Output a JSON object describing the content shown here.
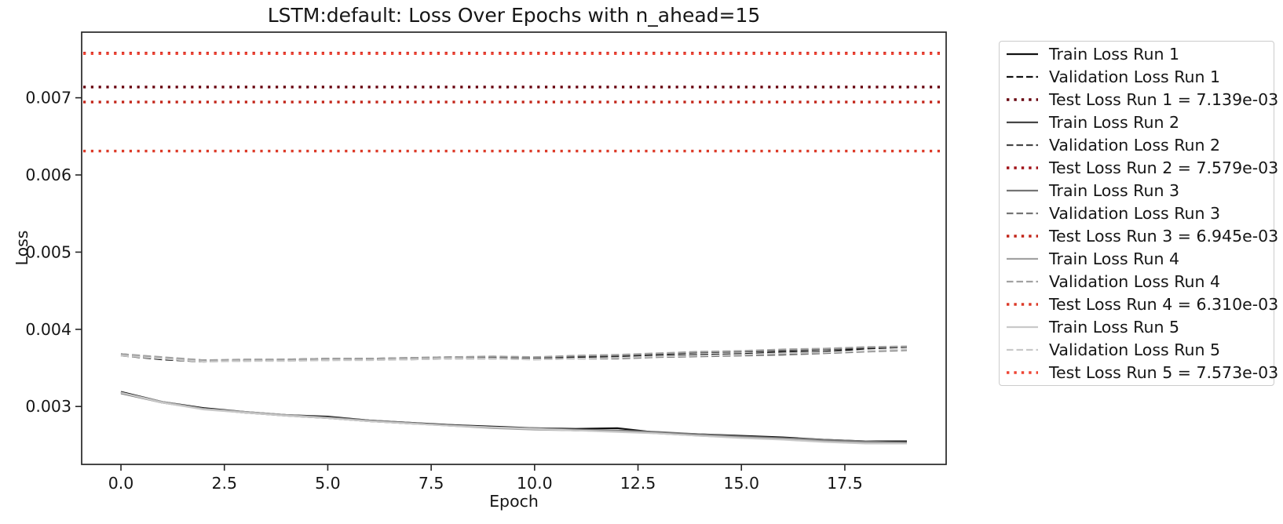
{
  "chart_data": {
    "type": "line",
    "title": "LSTM:default: Loss Over Epochs with n_ahead=15",
    "xlabel": "Epoch",
    "ylabel": "Loss",
    "xlim": [
      -0.95,
      19.95
    ],
    "ylim": [
      0.00225,
      0.00785
    ],
    "grid": false,
    "legend_position": "outside-right",
    "x_tick_values": [
      0.0,
      2.5,
      5.0,
      7.5,
      10.0,
      12.5,
      15.0,
      17.5
    ],
    "x_tick_labels": [
      "0.0",
      "2.5",
      "5.0",
      "7.5",
      "10.0",
      "12.5",
      "15.0",
      "17.5"
    ],
    "y_tick_values": [
      0.003,
      0.004,
      0.005,
      0.006,
      0.007
    ],
    "y_tick_labels": [
      "0.003",
      "0.004",
      "0.005",
      "0.006",
      "0.007"
    ],
    "x": [
      0,
      1,
      2,
      3,
      4,
      5,
      6,
      7,
      8,
      9,
      10,
      11,
      12,
      13,
      14,
      15,
      16,
      17,
      18,
      19
    ],
    "series": [
      {
        "name": "Train Loss Run 1",
        "style": "solid",
        "color": "#111111",
        "values": [
          0.00319,
          0.00306,
          0.00298,
          0.00293,
          0.00289,
          0.00287,
          0.00282,
          0.00279,
          0.00276,
          0.00274,
          0.00272,
          0.00271,
          0.00272,
          0.00266,
          0.00264,
          0.00262,
          0.0026,
          0.00257,
          0.00255,
          0.00255
        ]
      },
      {
        "name": "Validation Loss Run 1",
        "style": "dashed",
        "color": "#111111",
        "values": [
          0.00366,
          0.00361,
          0.00358,
          0.0036,
          0.0036,
          0.00361,
          0.00361,
          0.00362,
          0.00363,
          0.00363,
          0.00362,
          0.00364,
          0.00364,
          0.00366,
          0.00367,
          0.00368,
          0.0037,
          0.00371,
          0.00375,
          0.00377
        ]
      },
      {
        "name": "Test Loss Run 1 = 7.139e-03",
        "style": "dotted",
        "color": "#67000d",
        "value": 0.007139
      },
      {
        "name": "Train Loss Run 2",
        "style": "solid",
        "color": "#464646",
        "values": [
          0.00318,
          0.00305,
          0.00297,
          0.00292,
          0.00288,
          0.00285,
          0.00281,
          0.00278,
          0.00276,
          0.00273,
          0.00271,
          0.00269,
          0.00268,
          0.00266,
          0.00263,
          0.00261,
          0.00258,
          0.00256,
          0.00254,
          0.00254
        ]
      },
      {
        "name": "Validation Loss Run 2",
        "style": "dashed",
        "color": "#464646",
        "values": [
          0.00368,
          0.00363,
          0.0036,
          0.0036,
          0.00361,
          0.00362,
          0.00362,
          0.00363,
          0.00364,
          0.00364,
          0.00363,
          0.00365,
          0.00366,
          0.00368,
          0.0037,
          0.00371,
          0.00372,
          0.00374,
          0.00376,
          0.00377
        ]
      },
      {
        "name": "Test Loss Run 2 = 7.579e-03",
        "style": "dotted",
        "color": "#a01016",
        "value": 0.007579
      },
      {
        "name": "Train Loss Run 3",
        "style": "solid",
        "color": "#757575",
        "values": [
          0.00317,
          0.00305,
          0.00297,
          0.00292,
          0.00289,
          0.00286,
          0.00282,
          0.00279,
          0.00275,
          0.00273,
          0.00272,
          0.0027,
          0.00269,
          0.00267,
          0.00264,
          0.00261,
          0.00259,
          0.00257,
          0.00255,
          0.00253
        ]
      },
      {
        "name": "Validation Loss Run 3",
        "style": "dashed",
        "color": "#757575",
        "values": [
          0.00367,
          0.00362,
          0.00359,
          0.00359,
          0.0036,
          0.0036,
          0.00361,
          0.00361,
          0.00362,
          0.00362,
          0.00361,
          0.00362,
          0.00362,
          0.00364,
          0.00365,
          0.00366,
          0.00367,
          0.00369,
          0.00371,
          0.00373
        ]
      },
      {
        "name": "Test Loss Run 3 = 6.945e-03",
        "style": "dotted",
        "color": "#c22418",
        "value": 0.006945
      },
      {
        "name": "Train Loss Run 4",
        "style": "solid",
        "color": "#a2a2a2",
        "values": [
          0.00318,
          0.00306,
          0.00297,
          0.00293,
          0.00289,
          0.00285,
          0.00281,
          0.00278,
          0.00275,
          0.00272,
          0.0027,
          0.00269,
          0.00268,
          0.00265,
          0.00262,
          0.0026,
          0.00258,
          0.00255,
          0.00253,
          0.00252
        ]
      },
      {
        "name": "Validation Loss Run 4",
        "style": "dashed",
        "color": "#a2a2a2",
        "values": [
          0.00368,
          0.00364,
          0.0036,
          0.00361,
          0.00361,
          0.00362,
          0.00362,
          0.00363,
          0.00364,
          0.00365,
          0.00364,
          0.00366,
          0.00367,
          0.00369,
          0.00371,
          0.00372,
          0.00374,
          0.00375,
          0.00377,
          0.00378
        ]
      },
      {
        "name": "Test Loss Run 4 = 6.310e-03",
        "style": "dotted",
        "color": "#dc3a28",
        "value": 0.00631
      },
      {
        "name": "Train Loss Run 5",
        "style": "solid",
        "color": "#c9c9c9",
        "values": [
          0.00318,
          0.00305,
          0.00296,
          0.00292,
          0.00288,
          0.00285,
          0.00281,
          0.00278,
          0.00275,
          0.00273,
          0.00271,
          0.00269,
          0.00267,
          0.00265,
          0.00262,
          0.00259,
          0.00257,
          0.00254,
          0.00252,
          0.00252
        ]
      },
      {
        "name": "Validation Loss Run 5",
        "style": "dashed",
        "color": "#c9c9c9",
        "values": [
          0.00366,
          0.00362,
          0.00358,
          0.00359,
          0.00359,
          0.0036,
          0.0036,
          0.00361,
          0.00362,
          0.00362,
          0.00361,
          0.00362,
          0.00363,
          0.00365,
          0.00366,
          0.00367,
          0.00369,
          0.0037,
          0.00372,
          0.00374
        ]
      },
      {
        "name": "Test Loss Run 5 = 7.573e-03",
        "style": "dotted",
        "color": "#ee4433",
        "value": 0.007573
      }
    ]
  },
  "style": {
    "spine_color": "#262626",
    "legend_border_color": "#cccccc",
    "background": "#ffffff"
  }
}
